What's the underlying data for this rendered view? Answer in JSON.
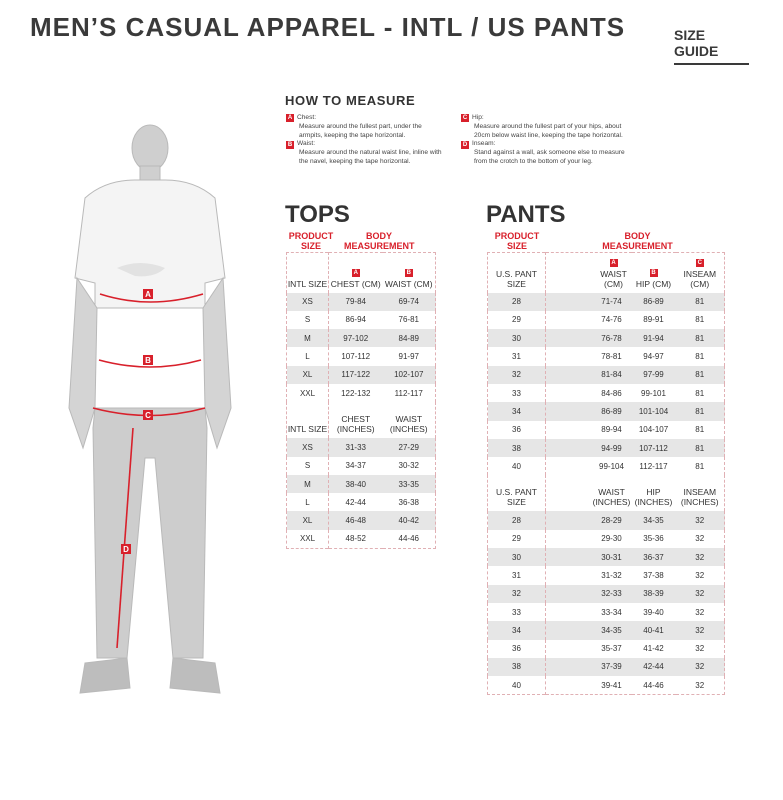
{
  "header": {
    "title": "MEN’S CASUAL APPAREL - INTL / US PANTS",
    "size_guide": "SIZE GUIDE"
  },
  "how_to_measure": {
    "title": "HOW TO MEASURE",
    "items": [
      {
        "badge": "A",
        "label": "Chest:",
        "desc": "Measure around the fullest part, under the armpits, keeping the tape horizontal."
      },
      {
        "badge": "B",
        "label": "Waist:",
        "desc": "Measure around the natural waist line, inline with the navel, keeping the tape horizontal."
      },
      {
        "badge": "C",
        "label": "Hip:",
        "desc": "Measure around the fullest part of your hips, about 20cm below waist line, keeping the tape horizontal."
      },
      {
        "badge": "D",
        "label": "Inseam:",
        "desc": "Stand against a wall, ask someone else to measure from the crotch to the bottom of your leg."
      }
    ]
  },
  "figure": {
    "markers": [
      "A",
      "B",
      "C",
      "D"
    ],
    "accent": "#d8202b"
  },
  "tops": {
    "title": "TOPS",
    "product_size": "PRODUCT SIZE",
    "body_measurement": "BODY MEASUREMENT",
    "cm_header": {
      "size": "INTL SIZE",
      "c1_badge": "A",
      "c1": "CHEST (CM)",
      "c2_badge": "B",
      "c2": "WAIST (CM)"
    },
    "cm_rows": [
      [
        "XS",
        "79-84",
        "69-74"
      ],
      [
        "S",
        "86-94",
        "76-81"
      ],
      [
        "M",
        "97-102",
        "84-89"
      ],
      [
        "L",
        "107-112",
        "91-97"
      ],
      [
        "XL",
        "117-122",
        "102-107"
      ],
      [
        "XXL",
        "122-132",
        "112-117"
      ]
    ],
    "in_header": {
      "size": "INTL SIZE",
      "c1": "CHEST (INCHES)",
      "c2": "WAIST (INCHES)"
    },
    "in_rows": [
      [
        "XS",
        "31-33",
        "27-29"
      ],
      [
        "S",
        "34-37",
        "30-32"
      ],
      [
        "M",
        "38-40",
        "33-35"
      ],
      [
        "L",
        "42-44",
        "36-38"
      ],
      [
        "XL",
        "46-48",
        "40-42"
      ],
      [
        "XXL",
        "48-52",
        "44-46"
      ]
    ]
  },
  "pants": {
    "title": "PANTS",
    "product_size": "PRODUCT SIZE",
    "body_measurement": "BODY MEASUREMENT",
    "cm_header": {
      "size": "U.S. PANT SIZE",
      "c1_badge": "A",
      "c1": "WAIST (CM)",
      "c2_badge": "B",
      "c2": "HIP (CM)",
      "c3_badge": "C",
      "c3": "INSEAM (CM)"
    },
    "cm_rows": [
      [
        "28",
        "71-74",
        "86-89",
        "81"
      ],
      [
        "29",
        "74-76",
        "89-91",
        "81"
      ],
      [
        "30",
        "76-78",
        "91-94",
        "81"
      ],
      [
        "31",
        "78-81",
        "94-97",
        "81"
      ],
      [
        "32",
        "81-84",
        "97-99",
        "81"
      ],
      [
        "33",
        "84-86",
        "99-101",
        "81"
      ],
      [
        "34",
        "86-89",
        "101-104",
        "81"
      ],
      [
        "36",
        "89-94",
        "104-107",
        "81"
      ],
      [
        "38",
        "94-99",
        "107-112",
        "81"
      ],
      [
        "40",
        "99-104",
        "112-117",
        "81"
      ]
    ],
    "in_header": {
      "size": "U.S. PANT SIZE",
      "c1": "WAIST (INCHES)",
      "c2": "HIP (INCHES)",
      "c3": "INSEAM (INCHES)"
    },
    "in_rows": [
      [
        "28",
        "28-29",
        "34-35",
        "32"
      ],
      [
        "29",
        "29-30",
        "35-36",
        "32"
      ],
      [
        "30",
        "30-31",
        "36-37",
        "32"
      ],
      [
        "31",
        "31-32",
        "37-38",
        "32"
      ],
      [
        "32",
        "32-33",
        "38-39",
        "32"
      ],
      [
        "33",
        "33-34",
        "39-40",
        "32"
      ],
      [
        "34",
        "34-35",
        "40-41",
        "32"
      ],
      [
        "36",
        "35-37",
        "41-42",
        "32"
      ],
      [
        "38",
        "37-39",
        "42-44",
        "32"
      ],
      [
        "40",
        "39-41",
        "44-46",
        "32"
      ]
    ]
  }
}
